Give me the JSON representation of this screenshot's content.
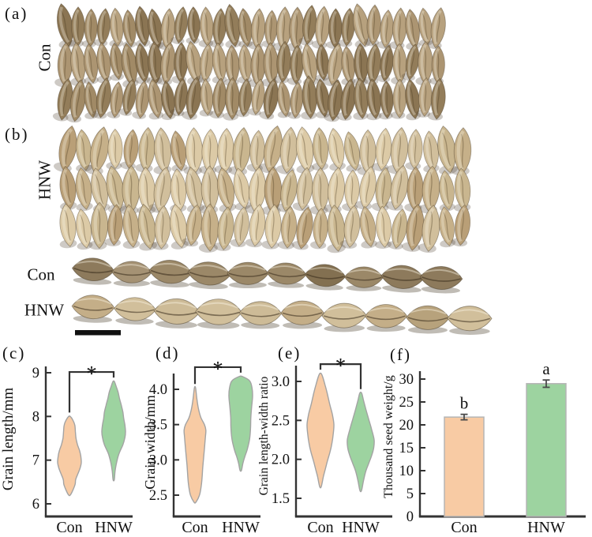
{
  "figure_bg": "#ffffff",
  "photos": {
    "panel_a": {
      "letter": "(a)",
      "treatment_label": "Con",
      "rows": 3,
      "grains_per_row": 30,
      "palette": [
        "#a18a66",
        "#937d5a",
        "#ac9572",
        "#8b7553",
        "#b7a17e"
      ]
    },
    "panel_b": {
      "letter": "(b)",
      "treatment_label": "HNW",
      "rows": 3,
      "grains_per_row": 26,
      "palette": [
        "#c6b089",
        "#d1bf9c",
        "#b99f77",
        "#dccaa6",
        "#c9b68f"
      ]
    },
    "side_rows": [
      {
        "label": "Con",
        "count": 10,
        "palette": [
          "#9b8868",
          "#8d7a5c",
          "#a59274",
          "#837051"
        ]
      },
      {
        "label": "HNW",
        "count": 10,
        "palette": [
          "#c4ae88",
          "#d1bf9b",
          "#b7a27c",
          "#cdbb97"
        ]
      }
    ],
    "scale_bar_color": "#111111"
  },
  "style": {
    "con_fill": "#f8cba4",
    "hnw_fill": "#9dd3a0",
    "violin_stroke": "#a3a3a3",
    "axis_color": "#333333",
    "text_color": "#111111",
    "bar_stroke": "#b5b5b5",
    "error_color": "#4a4a4a",
    "bracket_color": "#333333"
  },
  "chart_data": [
    {
      "panel_letter": "(c)",
      "type": "violin",
      "ylabel": "Grain length/mm",
      "categories": [
        "Con",
        "HNW"
      ],
      "yticks": [
        "6",
        "7",
        "8",
        "9"
      ],
      "ylim": [
        5.75,
        9.25
      ],
      "significance": "*",
      "grid": false,
      "legend_position": "none",
      "series": [
        {
          "name": "Con",
          "color": "#f8cba4",
          "range": [
            6.2,
            8.0
          ],
          "profile": [
            [
              6.2,
              0.07
            ],
            [
              6.32,
              0.3
            ],
            [
              6.45,
              0.48
            ],
            [
              6.55,
              0.52
            ],
            [
              6.68,
              0.7
            ],
            [
              6.82,
              0.9
            ],
            [
              6.95,
              1.0
            ],
            [
              7.1,
              0.95
            ],
            [
              7.22,
              0.85
            ],
            [
              7.35,
              0.68
            ],
            [
              7.5,
              0.55
            ],
            [
              7.65,
              0.5
            ],
            [
              7.8,
              0.45
            ],
            [
              7.92,
              0.28
            ],
            [
              8.0,
              0.07
            ]
          ]
        },
        {
          "name": "HNW",
          "color": "#9dd3a0",
          "range": [
            6.55,
            8.8
          ],
          "profile": [
            [
              6.55,
              0.05
            ],
            [
              6.75,
              0.12
            ],
            [
              6.95,
              0.25
            ],
            [
              7.15,
              0.45
            ],
            [
              7.35,
              0.78
            ],
            [
              7.52,
              0.95
            ],
            [
              7.65,
              1.0
            ],
            [
              7.8,
              0.95
            ],
            [
              7.95,
              0.85
            ],
            [
              8.1,
              0.78
            ],
            [
              8.25,
              0.65
            ],
            [
              8.4,
              0.5
            ],
            [
              8.55,
              0.38
            ],
            [
              8.68,
              0.22
            ],
            [
              8.8,
              0.06
            ]
          ]
        }
      ]
    },
    {
      "panel_letter": "(d)",
      "type": "violin",
      "ylabel": "Grain width/mm",
      "categories": [
        "Con",
        "HNW"
      ],
      "yticks": [
        "2.5",
        "3.0",
        "3.5",
        "4.0"
      ],
      "ylim": [
        2.2,
        4.35
      ],
      "significance": "*",
      "grid": false,
      "legend_position": "none",
      "series": [
        {
          "name": "Con",
          "color": "#f8cba4",
          "range": [
            2.4,
            4.02
          ],
          "profile": [
            [
              2.4,
              0.08
            ],
            [
              2.5,
              0.38
            ],
            [
              2.62,
              0.52
            ],
            [
              2.75,
              0.6
            ],
            [
              2.9,
              0.66
            ],
            [
              3.05,
              0.74
            ],
            [
              3.2,
              0.82
            ],
            [
              3.32,
              0.88
            ],
            [
              3.42,
              0.92
            ],
            [
              3.5,
              0.8
            ],
            [
              3.6,
              0.5
            ],
            [
              3.72,
              0.3
            ],
            [
              3.85,
              0.17
            ],
            [
              4.02,
              0.05
            ]
          ]
        },
        {
          "name": "HNW",
          "color": "#9dd3a0",
          "range": [
            2.85,
            4.18
          ],
          "profile": [
            [
              2.85,
              0.06
            ],
            [
              2.95,
              0.18
            ],
            [
              3.05,
              0.35
            ],
            [
              3.15,
              0.55
            ],
            [
              3.3,
              0.75
            ],
            [
              3.45,
              0.83
            ],
            [
              3.6,
              0.85
            ],
            [
              3.75,
              0.92
            ],
            [
              3.9,
              1.0
            ],
            [
              4.02,
              0.95
            ],
            [
              4.12,
              0.75
            ],
            [
              4.18,
              0.15
            ]
          ]
        }
      ]
    },
    {
      "panel_letter": "(e)",
      "type": "violin",
      "ylabel": "Grain length-width ratio",
      "categories": [
        "Con",
        "HNW"
      ],
      "yticks": [
        "1.5",
        "2.0",
        "2.5",
        "3.0"
      ],
      "ylim": [
        1.3,
        3.25
      ],
      "significance": "*",
      "grid": false,
      "legend_position": "none",
      "series": [
        {
          "name": "Con",
          "color": "#f8cba4",
          "range": [
            1.65,
            3.1
          ],
          "profile": [
            [
              1.65,
              0.06
            ],
            [
              1.78,
              0.22
            ],
            [
              1.9,
              0.4
            ],
            [
              2.0,
              0.55
            ],
            [
              2.1,
              0.72
            ],
            [
              2.2,
              0.85
            ],
            [
              2.32,
              0.95
            ],
            [
              2.45,
              1.0
            ],
            [
              2.58,
              0.88
            ],
            [
              2.7,
              0.7
            ],
            [
              2.85,
              0.5
            ],
            [
              2.95,
              0.35
            ],
            [
              3.05,
              0.18
            ],
            [
              3.1,
              0.06
            ]
          ]
        },
        {
          "name": "HNW",
          "color": "#9dd3a0",
          "range": [
            1.6,
            2.85
          ],
          "profile": [
            [
              1.6,
              0.06
            ],
            [
              1.72,
              0.2
            ],
            [
              1.85,
              0.38
            ],
            [
              1.95,
              0.6
            ],
            [
              2.05,
              0.82
            ],
            [
              2.15,
              0.97
            ],
            [
              2.25,
              1.0
            ],
            [
              2.38,
              0.82
            ],
            [
              2.5,
              0.62
            ],
            [
              2.62,
              0.42
            ],
            [
              2.75,
              0.22
            ],
            [
              2.85,
              0.07
            ]
          ]
        }
      ]
    },
    {
      "panel_letter": "(f)",
      "type": "bar",
      "ylabel": "Thousand seed weight/g",
      "categories": [
        "Con",
        "HNW"
      ],
      "values": [
        21.7,
        29.0
      ],
      "errors": [
        0.6,
        0.8
      ],
      "sig_letters": [
        "b",
        "a"
      ],
      "yticks": [
        "0",
        "5",
        "10",
        "15",
        "20",
        "25",
        "30"
      ],
      "ylim": [
        0,
        33
      ],
      "colors": [
        "#f8cba4",
        "#9dd3a0"
      ],
      "grid": false
    }
  ]
}
